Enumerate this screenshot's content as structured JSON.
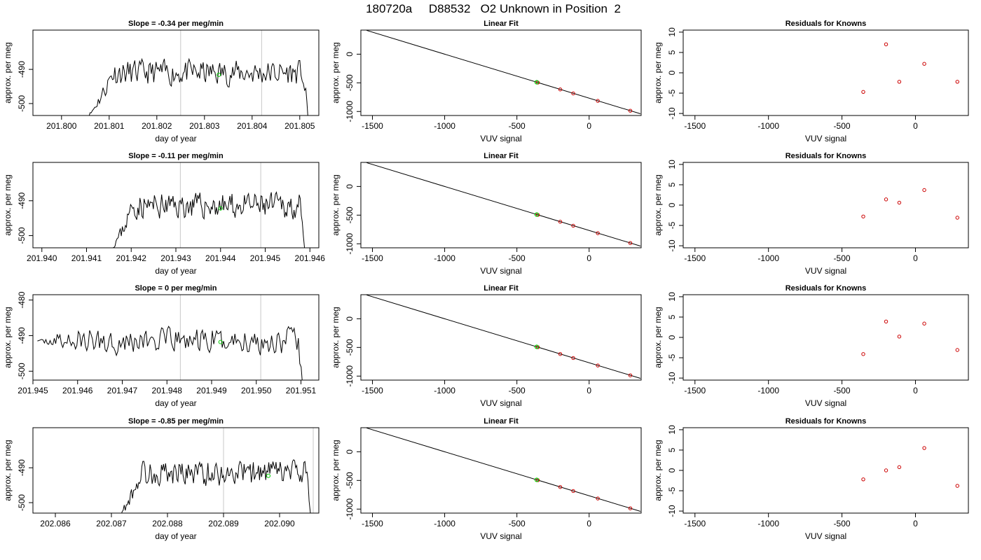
{
  "figure": {
    "title": "180720a     D88532   O2 Unknown in Position  2"
  },
  "colors": {
    "trace": "#000000",
    "guide_lines": "#c8c8c8",
    "unknown_point": "#00cc00",
    "known_points": "#cc0000",
    "fit_line": "#000000"
  },
  "chart_data": [
    {
      "type": "line",
      "panel": "row1-time-series",
      "title": "Slope =  -0.34  per meg/min",
      "xlabel": "day of year",
      "ylabel": "approx. per meg",
      "xlim": [
        201.7994,
        201.8054
      ],
      "ylim": [
        -503.5,
        -478.5
      ],
      "xticks": [
        201.8,
        201.801,
        201.802,
        201.803,
        201.804,
        201.805
      ],
      "xtick_labels": [
        "201.800",
        "201.801",
        "201.802",
        "201.803",
        "201.804",
        "201.805"
      ],
      "yticks": [
        -490,
        -500
      ],
      "ytick_labels": [
        "-490",
        "-500"
      ],
      "trace_start": 201.8005,
      "trace_end": 201.8052,
      "trace_first_y": -505,
      "trace_level": -491,
      "trace_seed": 11,
      "vlines": [
        201.8025,
        201.8042
      ],
      "unknown_point": {
        "x": 201.8033,
        "y": -491.6
      }
    },
    {
      "type": "line",
      "panel": "row1-linear-fit",
      "title": "Linear Fit",
      "xlabel": "VUV signal",
      "ylabel": "approx. per meg",
      "xlim": [
        -1580,
        360
      ],
      "ylim": [
        -1070,
        420
      ],
      "xticks": [
        -1500,
        -1000,
        -500,
        0
      ],
      "xtick_labels": [
        "-1500",
        "-1000",
        "-500",
        "0"
      ],
      "yticks": [
        0,
        -500,
        -1000
      ],
      "ytick_labels": [
        "0",
        "-500",
        "-1000"
      ],
      "fit_line": {
        "x": [
          -1540,
          355
        ],
        "y": [
          414.6,
          -1039.7
        ]
      },
      "knowns": {
        "x": [
          -355,
          -200,
          -110,
          60,
          285
        ],
        "y": [
          -495,
          -615,
          -685,
          -815,
          -987
        ]
      },
      "unknown_point": {
        "x": -363,
        "y": -490
      }
    },
    {
      "type": "scatter",
      "panel": "row1-residuals",
      "title": "Residuals for Knowns",
      "xlabel": "VUV signal",
      "ylabel": "approx. per meg",
      "xlim": [
        -1580,
        360
      ],
      "ylim": [
        -10.5,
        10.5
      ],
      "xticks": [
        -1500,
        -1000,
        -500,
        0
      ],
      "xtick_labels": [
        "-1500",
        "-1000",
        "-500",
        "0"
      ],
      "yticks": [
        10,
        5,
        0,
        -5,
        -10
      ],
      "ytick_labels": [
        "10",
        "5",
        "0",
        "-5",
        "-10"
      ],
      "x": [
        -355,
        -200,
        -110,
        60,
        285
      ],
      "y": [
        -4.7,
        7.0,
        -2.2,
        2.2,
        -2.2
      ]
    },
    {
      "type": "line",
      "panel": "row2-time-series",
      "title": "Slope =  -0.11  per meg/min",
      "xlabel": "day of year",
      "ylabel": "approx. per meg",
      "xlim": [
        201.9398,
        201.9462
      ],
      "ylim": [
        -503.5,
        -479.0
      ],
      "xticks": [
        201.94,
        201.941,
        201.942,
        201.943,
        201.944,
        201.945,
        201.946
      ],
      "xtick_labels": [
        "201.940",
        "201.941",
        "201.942",
        "201.943",
        "201.944",
        "201.945",
        "201.946"
      ],
      "yticks": [
        -490,
        -500
      ],
      "ytick_labels": [
        "-490",
        "-500"
      ],
      "trace_start": 201.9415,
      "trace_end": 201.9459,
      "trace_first_y": -505,
      "trace_level": -491.5,
      "trace_seed": 23,
      "vlines": [
        201.9431,
        201.9449
      ],
      "unknown_point": {
        "x": 201.944,
        "y": -492.2
      }
    },
    {
      "type": "line",
      "panel": "row2-linear-fit",
      "title": "Linear Fit",
      "xlabel": "VUV signal",
      "ylabel": "approx. per meg",
      "xlim": [
        -1580,
        360
      ],
      "ylim": [
        -1070,
        420
      ],
      "xticks": [
        -1500,
        -1000,
        -500,
        0
      ],
      "xtick_labels": [
        "-1500",
        "-1000",
        "-500",
        "0"
      ],
      "yticks": [
        0,
        -500,
        -1000
      ],
      "ytick_labels": [
        "0",
        "-500",
        "-1000"
      ],
      "fit_line": {
        "x": [
          -1540,
          355
        ],
        "y": [
          414.6,
          -1039.7
        ]
      },
      "knowns": {
        "x": [
          -355,
          -200,
          -110,
          60,
          285
        ],
        "y": [
          -495,
          -615,
          -685,
          -815,
          -987
        ]
      },
      "unknown_point": {
        "x": -363,
        "y": -490
      }
    },
    {
      "type": "scatter",
      "panel": "row2-residuals",
      "title": "Residuals for Knowns",
      "xlabel": "VUV signal",
      "ylabel": "approx. per meg",
      "xlim": [
        -1580,
        360
      ],
      "ylim": [
        -10.5,
        10.5
      ],
      "xticks": [
        -1500,
        -1000,
        -500,
        0
      ],
      "xtick_labels": [
        "-1500",
        "-1000",
        "-500",
        "0"
      ],
      "yticks": [
        10,
        5,
        0,
        -5,
        -10
      ],
      "ytick_labels": [
        "10",
        "5",
        "0",
        "-5",
        "-10"
      ],
      "x": [
        -355,
        -200,
        -110,
        60,
        285
      ],
      "y": [
        -2.8,
        1.4,
        0.6,
        3.7,
        -3.1
      ]
    },
    {
      "type": "line",
      "panel": "row3-time-series",
      "title": "Slope =  0  per meg/min",
      "xlabel": "day of year",
      "ylabel": "approx. per meg",
      "xlim": [
        201.945,
        201.9514
      ],
      "ylim": [
        -502.5,
        -478.5
      ],
      "xticks": [
        201.945,
        201.946,
        201.947,
        201.948,
        201.949,
        201.95,
        201.951
      ],
      "xtick_labels": [
        "201.945",
        "201.946",
        "201.947",
        "201.948",
        "201.949",
        "201.950",
        "201.951"
      ],
      "yticks": [
        -480,
        -490,
        -500
      ],
      "ytick_labels": [
        "-480",
        "-490",
        "-500"
      ],
      "trace_start": 201.9451,
      "trace_end": 201.9511,
      "trace_first_y": -491.5,
      "trace_level": -491.5,
      "trace_seed": 37,
      "vlines": [
        201.9483,
        201.9501
      ],
      "unknown_point": {
        "x": 201.9492,
        "y": -491.8
      }
    },
    {
      "type": "line",
      "panel": "row3-linear-fit",
      "title": "Linear Fit",
      "xlabel": "VUV signal",
      "ylabel": "approx. per meg",
      "xlim": [
        -1580,
        360
      ],
      "ylim": [
        -1070,
        420
      ],
      "xticks": [
        -1500,
        -1000,
        -500,
        0
      ],
      "xtick_labels": [
        "-1500",
        "-1000",
        "-500",
        "0"
      ],
      "yticks": [
        0,
        -500,
        -1000
      ],
      "ytick_labels": [
        "0",
        "-500",
        "-1000"
      ],
      "fit_line": {
        "x": [
          -1540,
          355
        ],
        "y": [
          414.6,
          -1039.7
        ]
      },
      "knowns": {
        "x": [
          -355,
          -200,
          -110,
          60,
          285
        ],
        "y": [
          -495,
          -615,
          -685,
          -815,
          -987
        ]
      },
      "unknown_point": {
        "x": -363,
        "y": -490
      }
    },
    {
      "type": "scatter",
      "panel": "row3-residuals",
      "title": "Residuals for Knowns",
      "xlabel": "VUV signal",
      "ylabel": "approx. per meg",
      "xlim": [
        -1580,
        360
      ],
      "ylim": [
        -10.5,
        10.5
      ],
      "xticks": [
        -1500,
        -1000,
        -500,
        0
      ],
      "xtick_labels": [
        "-1500",
        "-1000",
        "-500",
        "0"
      ],
      "yticks": [
        10,
        5,
        0,
        -5,
        -10
      ],
      "ytick_labels": [
        "10",
        "5",
        "0",
        "-5",
        "-10"
      ],
      "x": [
        -355,
        -200,
        -110,
        60,
        285
      ],
      "y": [
        -4.1,
        3.9,
        0.2,
        3.4,
        -3.1
      ]
    },
    {
      "type": "line",
      "panel": "row4-time-series",
      "title": "Slope =  -0.85  per meg/min",
      "xlabel": "day of year",
      "ylabel": "approx. per meg",
      "xlim": [
        202.0856,
        202.0907
      ],
      "ylim": [
        -503.0,
        -478.5
      ],
      "xticks": [
        202.086,
        202.087,
        202.088,
        202.089,
        202.09
      ],
      "xtick_labels": [
        "202.086",
        "202.087",
        "202.088",
        "202.089",
        "202.090"
      ],
      "yticks": [
        -490,
        -500
      ],
      "ytick_labels": [
        "-490",
        "-500"
      ],
      "trace_start": 202.0871,
      "trace_end": 202.0906,
      "trace_first_y": -505,
      "trace_level": -491.5,
      "trace_seed": 53,
      "vlines": [
        202.089,
        202.0906
      ],
      "unknown_point": {
        "x": 202.0898,
        "y": -492.3
      }
    },
    {
      "type": "line",
      "panel": "row4-linear-fit",
      "title": "Linear Fit",
      "xlabel": "VUV signal",
      "ylabel": "approx. per meg",
      "xlim": [
        -1580,
        360
      ],
      "ylim": [
        -1070,
        420
      ],
      "xticks": [
        -1500,
        -1000,
        -500,
        0
      ],
      "xtick_labels": [
        "-1500",
        "-1000",
        "-500",
        "0"
      ],
      "yticks": [
        0,
        -500,
        -1000
      ],
      "ytick_labels": [
        "0",
        "-500",
        "-1000"
      ],
      "fit_line": {
        "x": [
          -1540,
          355
        ],
        "y": [
          414.6,
          -1039.7
        ]
      },
      "knowns": {
        "x": [
          -355,
          -200,
          -110,
          60,
          285
        ],
        "y": [
          -495,
          -615,
          -685,
          -815,
          -987
        ]
      },
      "unknown_point": {
        "x": -363,
        "y": -490
      }
    },
    {
      "type": "scatter",
      "panel": "row4-residuals",
      "title": "Residuals for Knowns",
      "xlabel": "VUV signal",
      "ylabel": "approx. per meg",
      "xlim": [
        -1580,
        360
      ],
      "ylim": [
        -10.5,
        10.5
      ],
      "xticks": [
        -1500,
        -1000,
        -500,
        0
      ],
      "xtick_labels": [
        "-1500",
        "-1000",
        "-500",
        "0"
      ],
      "yticks": [
        10,
        5,
        0,
        -5,
        -10
      ],
      "ytick_labels": [
        "10",
        "5",
        "0",
        "-5",
        "-10"
      ],
      "x": [
        -355,
        -200,
        -110,
        60,
        285
      ],
      "y": [
        -2.2,
        0.0,
        0.8,
        5.5,
        -3.8
      ]
    }
  ]
}
